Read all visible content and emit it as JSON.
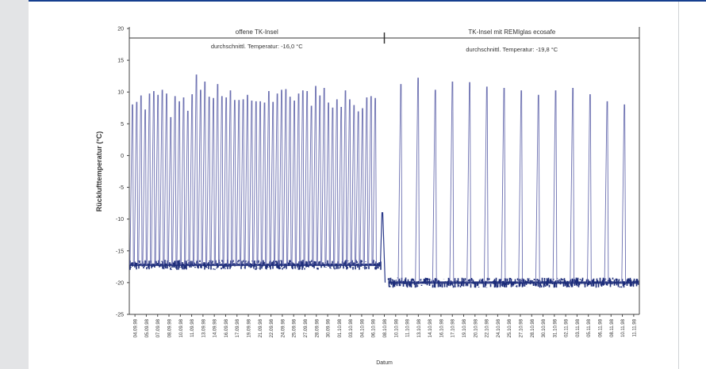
{
  "chart_data": {
    "type": "line",
    "title": "",
    "xlabel": "Datum",
    "ylabel": "Rücklufttemperatur (°C)",
    "ylim": [
      -25,
      20
    ],
    "yticks": [
      20,
      15,
      10,
      5,
      0,
      -5,
      -10,
      -15,
      -20,
      -25
    ],
    "grid": false,
    "legend": "none",
    "x_categories": [
      "04.09.98",
      "05.09.98",
      "07.09.98",
      "08.09.98",
      "10.09.98",
      "11.09.98",
      "13.09.98",
      "14.09.98",
      "16.09.98",
      "17.09.98",
      "19.09.98",
      "21.09.98",
      "22.09.98",
      "24.09.98",
      "25.09.98",
      "27.09.98",
      "28.09.98",
      "30.09.98",
      "01.10.98",
      "03.10.98",
      "04.10.98",
      "06.10.98",
      "08.10.98",
      "10.10.98",
      "11.10.98",
      "13.10.98",
      "14.10.98",
      "16.10.98",
      "17.10.98",
      "19.10.98",
      "20.10.98",
      "22.10.98",
      "24.10.98",
      "25.10.98",
      "27.10.98",
      "28.10.98",
      "30.10.98",
      "31.10.98",
      "02.11.98",
      "03.11.98",
      "05.11.98",
      "06.11.98",
      "08.11.98",
      "10.11.98",
      "11.11.98"
    ],
    "divider_x": "07.10.98",
    "regions": [
      {
        "name": "offene TK-Insel",
        "note": "durchschnittl. Temperatur: -16,0 °C",
        "baseline": -17.2,
        "spike_peaks": [
          8.0,
          8.4,
          9.4,
          7.2,
          9.7,
          10.1,
          9.5,
          10.3,
          9.7,
          6.0,
          9.3,
          8.5,
          9.1,
          7.0,
          9.6,
          12.7,
          10.3,
          11.6,
          9.2,
          9.0,
          11.2,
          9.3,
          9.1,
          10.2,
          8.7,
          8.7,
          8.8,
          9.5,
          8.6,
          8.5,
          8.5,
          8.3,
          10.1,
          8.4,
          9.7,
          10.3,
          10.4,
          9.2,
          8.6,
          9.7,
          10.2,
          10.1,
          7.8,
          10.9,
          9.4,
          10.6,
          8.3,
          7.5,
          8.8,
          7.6,
          10.2,
          8.8,
          7.9,
          6.9,
          7.4,
          9.1,
          9.3,
          9.0
        ],
        "end_value": -9.0
      },
      {
        "name": "TK-Insel mit REMIglas ecosafe",
        "note": "durchschnittl. Temperatur: -19,8 °C",
        "baseline": -20.0,
        "spike_peaks": [
          11.2,
          12.2,
          10.3,
          11.6,
          11.5,
          10.8,
          10.6,
          10.2,
          9.5,
          10.2,
          10.6,
          9.6,
          8.5,
          8.0
        ]
      }
    ]
  }
}
